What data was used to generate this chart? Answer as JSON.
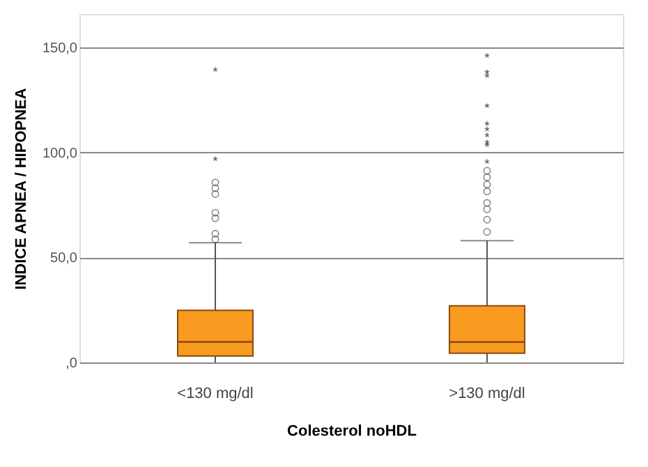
{
  "chart_data": {
    "type": "box",
    "xlabel": "Colesterol noHDL",
    "ylabel": "INDICE APNEA / HIPOPNEA",
    "categories": [
      "<130 mg/dl",
      ">130 mg/dl"
    ],
    "ylim": [
      0,
      166
    ],
    "yticks": [
      {
        "value": 0,
        "label": ",0"
      },
      {
        "value": 50,
        "label": "50,0"
      },
      {
        "value": 100,
        "label": "100,0"
      },
      {
        "value": 150,
        "label": "150,0"
      }
    ],
    "grid": "y",
    "series": [
      {
        "color": "#f99b20",
        "boxes": [
          {
            "low": 0,
            "q1": 3.1,
            "median": 9.8,
            "q3": 24.8,
            "high": 57,
            "outliers": [
              58.7,
              61.3,
              68.7,
              71.3,
              80.2,
              83,
              85.7
            ]
          },
          {
            "low": 0,
            "q1": 4.4,
            "median": 9.7,
            "q3": 27,
            "high": 58,
            "outliers": [
              62.2,
              68,
              73,
              76,
              81.5,
              84.8,
              88.2,
              91.3
            ]
          }
        ]
      },
      {
        "type": "scatter",
        "marker": "star",
        "color": "#333333",
        "x": [
          "<130 mg/dl",
          "<130 mg/dl",
          ">130 mg/dl",
          ">130 mg/dl",
          ">130 mg/dl",
          ">130 mg/dl",
          ">130 mg/dl",
          ">130 mg/dl",
          ">130 mg/dl",
          ">130 mg/dl",
          ">130 mg/dl",
          ">130 mg/dl"
        ],
        "values": [
          97,
          139.5,
          95.7,
          103.7,
          105,
          108.3,
          111.2,
          113.8,
          122.3,
          136.7,
          138.4,
          146.2
        ]
      }
    ]
  }
}
